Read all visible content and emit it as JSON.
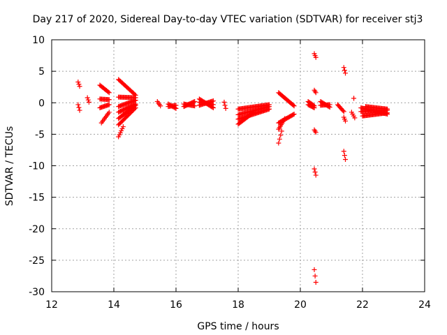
{
  "chart_data": {
    "type": "scatter",
    "title": "Day 217 of 2020, Sidereal Day-to-day VTEC variation (SDTVAR) for receiver stj3",
    "xlabel": "GPS time / hours",
    "ylabel": "SDTVAR / TECUs",
    "xlim": [
      12,
      24
    ],
    "ylim": [
      -30,
      10
    ],
    "xticks": [
      "12",
      "14",
      "16",
      "18",
      "20",
      "22",
      "24"
    ],
    "yticks": [
      "10",
      "5",
      "0",
      "-5",
      "-10",
      "-15",
      "-20",
      "-25",
      "-30"
    ],
    "grid": true,
    "marker": "plus",
    "color": "#ff0000",
    "series": [
      {
        "name": "SDTVAR",
        "segments": [
          {
            "x0": 12.85,
            "y0": 3.3,
            "x1": 12.9,
            "y1": 2.6
          },
          {
            "x0": 12.85,
            "y0": -0.3,
            "x1": 12.9,
            "y1": -1.2
          },
          {
            "x0": 13.15,
            "y0": 0.8,
            "x1": 13.2,
            "y1": 0.1
          },
          {
            "x0": 13.55,
            "y0": 2.8,
            "x1": 13.85,
            "y1": 1.6
          },
          {
            "x0": 13.55,
            "y0": 0.6,
            "x1": 13.85,
            "y1": 0.5
          },
          {
            "x0": 13.55,
            "y0": -0.8,
            "x1": 13.85,
            "y1": -0.3
          },
          {
            "x0": 13.6,
            "y0": -3.2,
            "x1": 13.85,
            "y1": -1.5
          },
          {
            "x0": 14.15,
            "y0": 3.7,
            "x1": 14.7,
            "y1": 1.2
          },
          {
            "x0": 14.15,
            "y0": 0.9,
            "x1": 14.7,
            "y1": 0.8
          },
          {
            "x0": 14.15,
            "y0": -0.6,
            "x1": 14.7,
            "y1": 0.4
          },
          {
            "x0": 14.15,
            "y0": -1.5,
            "x1": 14.7,
            "y1": -0.2
          },
          {
            "x0": 14.15,
            "y0": -2.5,
            "x1": 14.7,
            "y1": -0.4
          },
          {
            "x0": 14.15,
            "y0": -3.5,
            "x1": 14.7,
            "y1": -0.8
          },
          {
            "x0": 14.15,
            "y0": -5.4,
            "x1": 14.3,
            "y1": -3.8
          },
          {
            "x0": 15.4,
            "y0": 0.2,
            "x1": 15.5,
            "y1": -0.5
          },
          {
            "x0": 15.75,
            "y0": -0.2,
            "x1": 16.0,
            "y1": -0.9
          },
          {
            "x0": 15.75,
            "y0": -0.6,
            "x1": 16.0,
            "y1": -0.4
          },
          {
            "x0": 16.25,
            "y0": -0.6,
            "x1": 16.6,
            "y1": 0.2
          },
          {
            "x0": 16.25,
            "y0": -0.2,
            "x1": 16.6,
            "y1": -0.5
          },
          {
            "x0": 16.75,
            "y0": 0.6,
            "x1": 17.2,
            "y1": -0.8
          },
          {
            "x0": 16.75,
            "y0": 0.1,
            "x1": 17.2,
            "y1": -0.3
          },
          {
            "x0": 16.75,
            "y0": -0.4,
            "x1": 17.2,
            "y1": 0.3
          },
          {
            "x0": 17.55,
            "y0": 0.1,
            "x1": 17.6,
            "y1": -0.9
          },
          {
            "x0": 18.0,
            "y0": -1.0,
            "x1": 19.0,
            "y1": -0.3
          },
          {
            "x0": 18.0,
            "y0": -1.9,
            "x1": 19.0,
            "y1": -0.6
          },
          {
            "x0": 18.0,
            "y0": -2.6,
            "x1": 19.0,
            "y1": -1.0
          },
          {
            "x0": 18.0,
            "y0": -3.4,
            "x1": 18.5,
            "y1": -1.5
          },
          {
            "x0": 19.3,
            "y0": 1.6,
            "x1": 19.8,
            "y1": -0.5
          },
          {
            "x0": 19.3,
            "y0": -3.2,
            "x1": 19.8,
            "y1": -1.8
          },
          {
            "x0": 19.3,
            "y0": -4.2,
            "x1": 19.5,
            "y1": -2.5
          },
          {
            "x0": 19.3,
            "y0": -6.4,
            "x1": 19.4,
            "y1": -4.5
          },
          {
            "x0": 20.25,
            "y0": 0.2,
            "x1": 20.45,
            "y1": -0.5
          },
          {
            "x0": 20.25,
            "y0": -0.3,
            "x1": 20.45,
            "y1": -0.8
          },
          {
            "x0": 20.45,
            "y0": 7.8,
            "x1": 20.5,
            "y1": 7.2
          },
          {
            "x0": 20.45,
            "y0": 2.0,
            "x1": 20.5,
            "y1": 1.6
          },
          {
            "x0": 20.45,
            "y0": -4.3,
            "x1": 20.5,
            "y1": -4.7
          },
          {
            "x0": 20.45,
            "y0": -10.5,
            "x1": 20.5,
            "y1": -11.5
          },
          {
            "x0": 20.45,
            "y0": -26.5,
            "x1": 20.5,
            "y1": -28.5
          },
          {
            "x0": 20.65,
            "y0": 0.2,
            "x1": 20.95,
            "y1": -0.7
          },
          {
            "x0": 20.65,
            "y0": -0.4,
            "x1": 20.95,
            "y1": -0.3
          },
          {
            "x0": 21.2,
            "y0": -0.3,
            "x1": 21.4,
            "y1": -1.4
          },
          {
            "x0": 21.4,
            "y0": 5.6,
            "x1": 21.45,
            "y1": 4.7
          },
          {
            "x0": 21.4,
            "y0": -2.3,
            "x1": 21.45,
            "y1": -2.9
          },
          {
            "x0": 21.4,
            "y0": -7.7,
            "x1": 21.45,
            "y1": -9.0
          },
          {
            "x0": 21.65,
            "y0": -1.5,
            "x1": 21.75,
            "y1": -2.4
          },
          {
            "x0": 21.72,
            "y0": 0.7,
            "x1": 21.72,
            "y1": 0.7
          },
          {
            "x0": 21.95,
            "y0": -0.8,
            "x1": 22.8,
            "y1": -1.8
          },
          {
            "x0": 21.95,
            "y0": -1.4,
            "x1": 22.8,
            "y1": -1.2
          },
          {
            "x0": 22.0,
            "y0": -2.1,
            "x1": 22.8,
            "y1": -1.6
          },
          {
            "x0": 22.1,
            "y0": -0.6,
            "x1": 22.8,
            "y1": -1.0
          }
        ]
      }
    ]
  }
}
